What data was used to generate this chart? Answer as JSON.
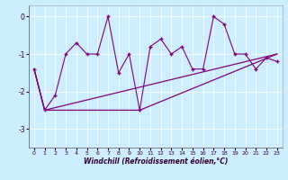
{
  "xlabel": "Windchill (Refroidissement éolien,°C)",
  "bg_color": "#cceeff",
  "line_color": "#800080",
  "x_hours": [
    0,
    1,
    2,
    3,
    4,
    5,
    6,
    7,
    8,
    9,
    10,
    11,
    12,
    13,
    14,
    15,
    16,
    17,
    18,
    19,
    20,
    21,
    22,
    23
  ],
  "windchill": [
    -1.4,
    -2.5,
    -2.1,
    -1.0,
    -0.7,
    -1.0,
    -1.0,
    0.0,
    -1.5,
    -1.0,
    -2.5,
    -0.8,
    -0.6,
    -1.0,
    -0.8,
    -1.4,
    -1.4,
    0.0,
    -0.2,
    -1.0,
    -1.0,
    -1.4,
    -1.1,
    -1.2
  ],
  "trend1_x": [
    0,
    1,
    10,
    23
  ],
  "trend1_y": [
    -1.4,
    -2.5,
    -2.5,
    -1.0
  ],
  "trend2_x": [
    0,
    1,
    23
  ],
  "trend2_y": [
    -1.4,
    -2.5,
    -1.0
  ],
  "ylim": [
    -3.5,
    0.3
  ],
  "yticks": [
    0,
    -1,
    -2,
    -3
  ],
  "xticks": [
    0,
    1,
    2,
    3,
    4,
    5,
    6,
    7,
    8,
    9,
    10,
    11,
    12,
    13,
    14,
    15,
    16,
    17,
    18,
    19,
    20,
    21,
    22,
    23
  ]
}
